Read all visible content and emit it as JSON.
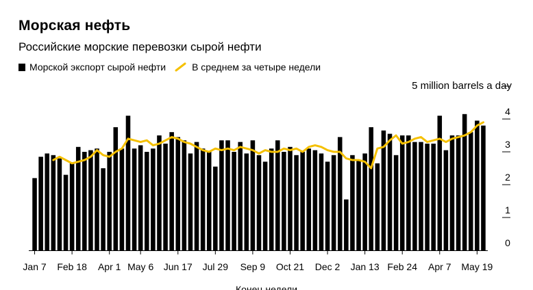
{
  "title": "Морская нефть",
  "subtitle": "Российские морские перевозки сырой нефти",
  "legend": {
    "bars": "Морской экспорт сырой нефти",
    "line": "В среднем за четыре недели"
  },
  "colors": {
    "bars": "#000000",
    "line": "#f5c000"
  },
  "chart_data": {
    "type": "bar",
    "unit_label": "5 million barrels a day",
    "xlabel": "Конец недели",
    "ylim": [
      0,
      5
    ],
    "y_ticks": [
      "0",
      "1",
      "2",
      "3",
      "4"
    ],
    "x_tick_labels": [
      {
        "label": "Jan 7",
        "index": 0
      },
      {
        "label": "Feb 18",
        "index": 6
      },
      {
        "label": "Apr 1",
        "index": 12
      },
      {
        "label": "May 6",
        "index": 17
      },
      {
        "label": "Jun 17",
        "index": 23
      },
      {
        "label": "Jul 29",
        "index": 29
      },
      {
        "label": "Sep 9",
        "index": 35
      },
      {
        "label": "Oct 21",
        "index": 41
      },
      {
        "label": "Dec 2",
        "index": 47
      },
      {
        "label": "Jan 13",
        "index": 53
      },
      {
        "label": "Feb 24",
        "index": 59
      },
      {
        "label": "Apr 7",
        "index": 65
      },
      {
        "label": "May 19",
        "index": 71
      }
    ],
    "series": [
      {
        "name": "Морской экспорт сырой нефти",
        "type": "bar",
        "values": [
          2.2,
          2.85,
          2.95,
          2.9,
          2.8,
          2.3,
          2.65,
          3.15,
          3.0,
          3.05,
          3.1,
          2.5,
          3.0,
          3.75,
          3.1,
          4.1,
          3.1,
          3.2,
          3.0,
          3.1,
          3.5,
          3.25,
          3.6,
          3.45,
          3.35,
          2.95,
          3.3,
          3.1,
          3.0,
          2.55,
          3.35,
          3.35,
          3.0,
          3.3,
          2.95,
          3.35,
          2.9,
          2.7,
          3.1,
          3.35,
          3.0,
          3.15,
          2.9,
          3.0,
          3.1,
          3.05,
          2.95,
          2.7,
          2.9,
          3.45,
          1.55,
          2.9,
          2.75,
          2.95,
          3.75,
          2.65,
          3.65,
          3.55,
          2.9,
          3.5,
          3.5,
          3.3,
          3.3,
          3.25,
          3.25,
          4.1,
          3.05,
          3.5,
          3.5,
          4.15,
          3.6,
          3.95,
          3.8
        ]
      },
      {
        "name": "В среднем за четыре недели",
        "type": "line",
        "start_index": 3,
        "values": [
          2.75,
          2.85,
          2.75,
          2.65,
          2.7,
          2.75,
          2.85,
          3.05,
          2.9,
          2.85,
          3.0,
          3.1,
          3.4,
          3.35,
          3.3,
          3.35,
          3.2,
          3.25,
          3.35,
          3.45,
          3.4,
          3.3,
          3.25,
          3.15,
          3.05,
          3.0,
          3.1,
          3.05,
          3.1,
          3.05,
          3.15,
          3.1,
          3.05,
          2.95,
          3.05,
          3.0,
          3.0,
          3.1,
          3.05,
          3.1,
          3.0,
          3.15,
          3.2,
          3.15,
          3.05,
          3.0,
          3.0,
          2.8,
          2.75,
          2.75,
          2.7,
          2.5,
          3.1,
          3.15,
          3.35,
          3.5,
          3.25,
          3.3,
          3.4,
          3.45,
          3.3,
          3.35,
          3.4,
          3.3,
          3.4,
          3.45,
          3.5,
          3.6,
          3.8,
          3.9
        ]
      }
    ]
  }
}
